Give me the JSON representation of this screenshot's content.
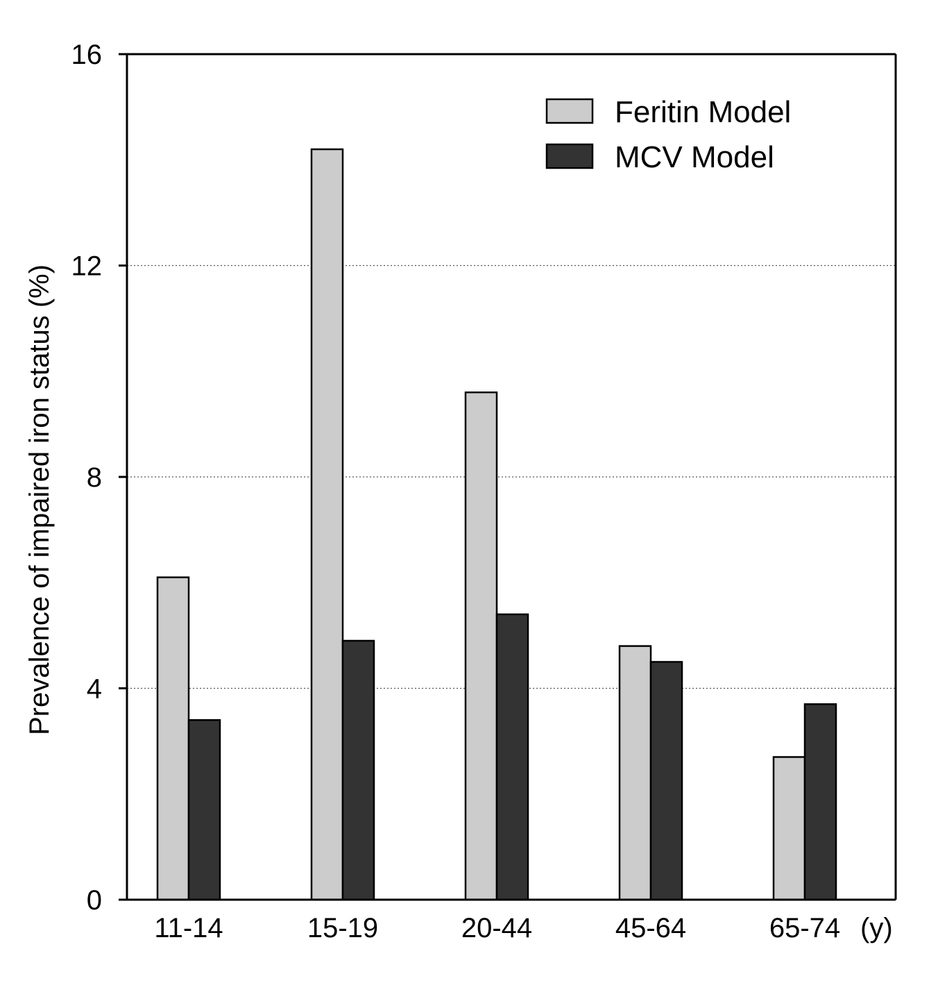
{
  "chart_data": {
    "type": "bar",
    "categories": [
      "11-14",
      "15-19",
      "20-44",
      "45-64",
      "65-74"
    ],
    "x_unit_label": "(y)",
    "ylabel": "Prevalence of impaired iron status (%)",
    "xlabel": "",
    "title": "",
    "ylim": [
      0,
      16
    ],
    "yticks": [
      0,
      4,
      8,
      12,
      16
    ],
    "grid": "horizontal dotted at 4, 8, 12",
    "legend_position": "top-right",
    "series": [
      {
        "name": "Feritin Model",
        "color": "#cccccc",
        "values": [
          6.1,
          14.2,
          9.6,
          4.8,
          2.7
        ]
      },
      {
        "name": "MCV Model",
        "color": "#333333",
        "values": [
          3.4,
          4.9,
          5.4,
          4.5,
          3.7
        ]
      }
    ]
  }
}
